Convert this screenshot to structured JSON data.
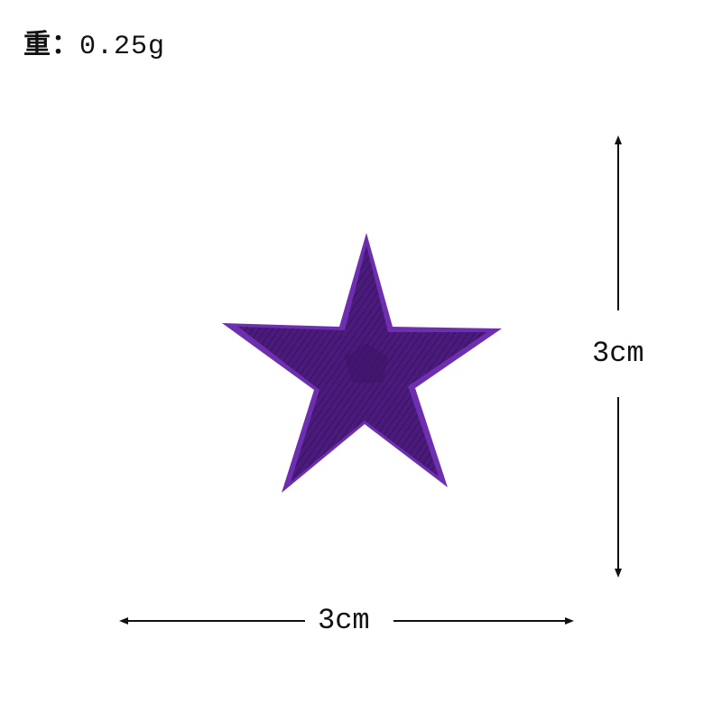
{
  "weight": {
    "label": "重：",
    "value": "0.25g"
  },
  "dimensions": {
    "width_label": "3cm",
    "height_label": "3cm"
  },
  "colors": {
    "star_fill": "#4a1b7a",
    "star_edge": "#6d2fb0",
    "arrows": "#111111"
  },
  "icons": {
    "product": "star-patch-icon"
  }
}
